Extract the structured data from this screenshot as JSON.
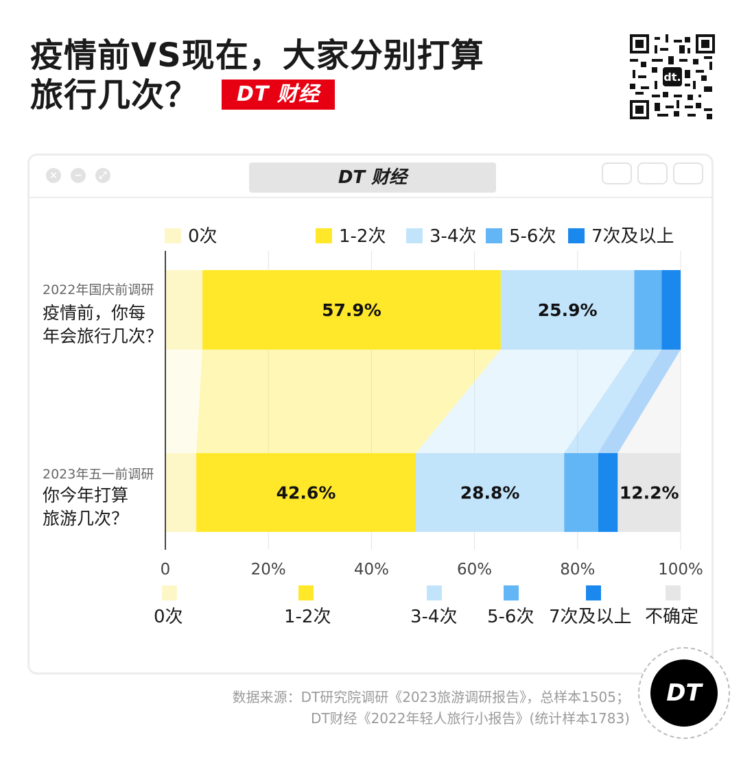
{
  "title": {
    "line1": "疫情前VS现在，大家分别打算",
    "line2": "旅行几次？",
    "brand_badge": "DT 财经"
  },
  "window": {
    "tab_title": "DT 财经"
  },
  "chart_data": {
    "type": "bar",
    "orientation": "horizontal-stacked-100",
    "categories": [
      "2022年国庆前调研 疫情前，你每年会旅行几次？",
      "2023年五一前调研 你今年打算旅游几次？"
    ],
    "category_small_labels": [
      "2022年国庆前调研",
      "2023年五一前调研"
    ],
    "category_big_labels": [
      [
        "疫情前，你每",
        "年会旅行几次？"
      ],
      [
        "你今年打算",
        "旅游几次？"
      ]
    ],
    "series": [
      {
        "name": "0次",
        "color": "#fdf7c8",
        "values": [
          7.2,
          6.0
        ],
        "labels": [
          "",
          ""
        ]
      },
      {
        "name": "1-2次",
        "color": "#ffe82a",
        "values": [
          57.9,
          42.6
        ],
        "labels": [
          "57.9%",
          "42.6%"
        ]
      },
      {
        "name": "3-4次",
        "color": "#c2e4fb",
        "values": [
          25.9,
          28.8
        ],
        "labels": [
          "25.9%",
          "28.8%"
        ]
      },
      {
        "name": "5-6次",
        "color": "#62b6f6",
        "values": [
          5.3,
          6.6
        ],
        "labels": [
          "",
          ""
        ]
      },
      {
        "name": "7次及以上",
        "color": "#1b88ee",
        "values": [
          3.7,
          3.8
        ],
        "labels": [
          "",
          ""
        ]
      },
      {
        "name": "不确定",
        "color": "#e6e6e6",
        "values": [
          0,
          12.2
        ],
        "labels": [
          "",
          "12.2%"
        ]
      }
    ],
    "x_ticks": [
      "0",
      "20%",
      "40%",
      "60%",
      "80%",
      "100%"
    ],
    "xlim": [
      0,
      100
    ],
    "grid": true,
    "legend_top": [
      "0次",
      "1-2次",
      "3-4次",
      "5-6次",
      "7次及以上"
    ],
    "legend_bottom": [
      "0次",
      "1-2次",
      "3-4次",
      "5-6次",
      "7次及以上",
      "不确定"
    ]
  },
  "source": {
    "line1": "数据来源：DT研究院调研《2023旅游调研报告》，总样本1505；",
    "line2": "DT财经《2022年轻人旅行小报告》(统计样本1783)"
  },
  "logo_text": "DT",
  "icons": [
    "qr-code-icon",
    "close-icon",
    "minimize-icon",
    "maximize-icon",
    "record-icon",
    "share-icon",
    "window-icon"
  ]
}
